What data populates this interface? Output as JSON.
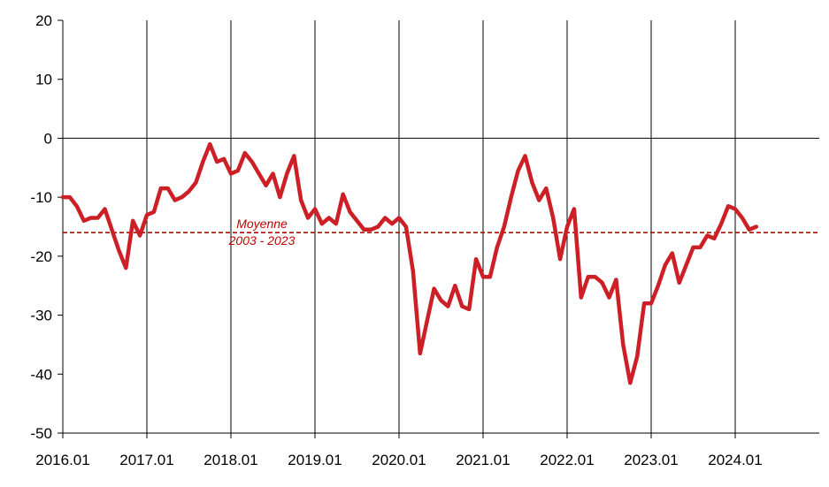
{
  "chart_data": {
    "type": "line",
    "title": "",
    "xlabel": "",
    "ylabel": "",
    "ylim": [
      -50,
      20
    ],
    "y_ticks": [
      20,
      10,
      0,
      -10,
      -20,
      -30,
      -40,
      -50
    ],
    "x_range_months": [
      "2016.01",
      "2024.12"
    ],
    "x_tick_labels": [
      "2016.01",
      "2017.01",
      "2018.01",
      "2019.01",
      "2020.01",
      "2021.01",
      "2022.01",
      "2023.01",
      "2024.01"
    ],
    "grid": "vertical lines at yearly ticks",
    "reference_line": {
      "value": -16,
      "label_line1": "Moyenne",
      "label_line2": "2003 - 2023",
      "color": "#c00000",
      "style": "dashed"
    },
    "series": [
      {
        "color": "#cc1f26",
        "x": [
          "2016.01",
          "2016.02",
          "2016.03",
          "2016.04",
          "2016.05",
          "2016.06",
          "2016.07",
          "2016.08",
          "2016.09",
          "2016.10",
          "2016.11",
          "2016.12",
          "2017.01",
          "2017.02",
          "2017.03",
          "2017.04",
          "2017.05",
          "2017.06",
          "2017.07",
          "2017.08",
          "2017.09",
          "2017.10",
          "2017.11",
          "2017.12",
          "2018.01",
          "2018.02",
          "2018.03",
          "2018.04",
          "2018.05",
          "2018.06",
          "2018.07",
          "2018.08",
          "2018.09",
          "2018.10",
          "2018.11",
          "2018.12",
          "2019.01",
          "2019.02",
          "2019.03",
          "2019.04",
          "2019.05",
          "2019.06",
          "2019.07",
          "2019.08",
          "2019.09",
          "2019.10",
          "2019.11",
          "2019.12",
          "2020.01",
          "2020.02",
          "2020.03",
          "2020.04",
          "2020.05",
          "2020.06",
          "2020.07",
          "2020.08",
          "2020.09",
          "2020.10",
          "2020.11",
          "2020.12",
          "2021.01",
          "2021.02",
          "2021.03",
          "2021.04",
          "2021.05",
          "2021.06",
          "2021.07",
          "2021.08",
          "2021.09",
          "2021.10",
          "2021.11",
          "2021.12",
          "2022.01",
          "2022.02",
          "2022.03",
          "2022.04",
          "2022.05",
          "2022.06",
          "2022.07",
          "2022.08",
          "2022.09",
          "2022.10",
          "2022.11",
          "2022.12",
          "2023.01",
          "2023.02",
          "2023.03",
          "2023.04",
          "2023.05",
          "2023.06",
          "2023.07",
          "2023.08",
          "2023.09",
          "2023.10",
          "2023.11",
          "2023.12",
          "2024.01",
          "2024.02",
          "2024.03",
          "2024.04"
        ],
        "values": [
          -10,
          -10,
          -11.5,
          -14,
          -13.5,
          -13.5,
          -12,
          -15.5,
          -19,
          -22,
          -14,
          -16.5,
          -13,
          -12.5,
          -8.5,
          -8.5,
          -10.5,
          -10,
          -9,
          -7.5,
          -4,
          -1,
          -4,
          -3.5,
          -6,
          -5.5,
          -2.5,
          -4,
          -6,
          -8,
          -6,
          -10,
          -6,
          -3,
          -10.5,
          -13.5,
          -12,
          -14.5,
          -13.5,
          -14.5,
          -9.5,
          -12.5,
          -14,
          -15.5,
          -15.5,
          -15,
          -13.5,
          -14.5,
          -13.5,
          -15,
          -22.5,
          -36.5,
          -31,
          -25.5,
          -27.5,
          -28.5,
          -25,
          -28.5,
          -29,
          -20.5,
          -23.5,
          -23.5,
          -18.5,
          -15,
          -10,
          -5.5,
          -3,
          -7.5,
          -10.5,
          -8.5,
          -13.5,
          -20.5,
          -15,
          -12,
          -27,
          -23.5,
          -23.5,
          -24.5,
          -27,
          -24,
          -35,
          -41.5,
          -37,
          -28,
          -28,
          -25,
          -21.5,
          -19.5,
          -24.5,
          -21.5,
          -18.5,
          -18.5,
          -16.5,
          -17,
          -14.5,
          -11.5,
          -12,
          -13.5,
          -15.5,
          -15
        ]
      }
    ]
  }
}
